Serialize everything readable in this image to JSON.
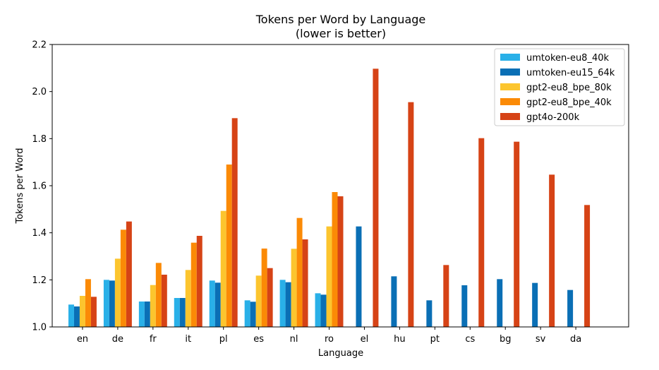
{
  "chart_data": {
    "type": "bar",
    "title": "Tokens per Word by Language",
    "subtitle": "(lower is better)",
    "xlabel": "Language",
    "ylabel": "Tokens per Word",
    "ylim": [
      1.0,
      2.2
    ],
    "yticks": [
      "1.0",
      "1.2",
      "1.4",
      "1.6",
      "1.8",
      "2.0",
      "2.2"
    ],
    "grid": false,
    "legend_position": "top-right",
    "categories": [
      "en",
      "de",
      "fr",
      "it",
      "pl",
      "es",
      "nl",
      "ro",
      "el",
      "hu",
      "pt",
      "cs",
      "bg",
      "sv",
      "da"
    ],
    "series": [
      {
        "name": "umtoken-eu8_40k",
        "color": "#29b0e8",
        "values": [
          1.095,
          1.2,
          1.108,
          1.123,
          1.197,
          1.113,
          1.2,
          1.143,
          null,
          null,
          null,
          null,
          null,
          null,
          null
        ]
      },
      {
        "name": "umtoken-eu15_64k",
        "color": "#0a6fb5",
        "values": [
          1.087,
          1.197,
          1.108,
          1.123,
          1.188,
          1.107,
          1.19,
          1.137,
          1.427,
          1.215,
          1.113,
          1.177,
          1.203,
          1.187,
          1.157
        ]
      },
      {
        "name": "gpt2-eu8_bpe_80k",
        "color": "#fcc52e",
        "values": [
          1.132,
          1.29,
          1.178,
          1.242,
          1.493,
          1.218,
          1.332,
          1.427,
          null,
          null,
          null,
          null,
          null,
          null,
          null
        ]
      },
      {
        "name": "gpt2-eu8_bpe_40k",
        "color": "#fb8a06",
        "values": [
          1.203,
          1.413,
          1.272,
          1.358,
          1.69,
          1.333,
          1.463,
          1.573,
          null,
          null,
          null,
          null,
          null,
          null,
          null
        ]
      },
      {
        "name": "gpt4o-200k",
        "color": "#d64316",
        "values": [
          1.128,
          1.448,
          1.222,
          1.387,
          1.887,
          1.25,
          1.372,
          1.555,
          2.097,
          1.955,
          1.263,
          1.802,
          1.787,
          1.647,
          1.518
        ]
      }
    ]
  }
}
